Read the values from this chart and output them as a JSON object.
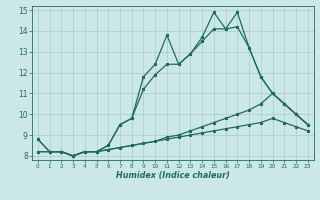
{
  "xlabel": "Humidex (Indice chaleur)",
  "xlim": [
    -0.5,
    23.5
  ],
  "ylim": [
    7.8,
    15.2
  ],
  "yticks": [
    8,
    9,
    10,
    11,
    12,
    13,
    14,
    15
  ],
  "xticks": [
    0,
    1,
    2,
    3,
    4,
    5,
    6,
    7,
    8,
    9,
    10,
    11,
    12,
    13,
    14,
    15,
    16,
    17,
    18,
    19,
    20,
    21,
    22,
    23
  ],
  "bg_color": "#cce8e6",
  "line_color": "#1e6b63",
  "grid_color": "#b0d0cc",
  "line1_x": [
    0,
    1,
    2,
    3,
    4,
    5,
    6,
    7,
    8,
    9,
    10,
    11,
    12,
    13,
    14,
    15,
    16,
    17,
    18,
    19,
    20,
    21,
    22,
    23
  ],
  "line1_y": [
    8.8,
    8.2,
    8.2,
    8.0,
    8.2,
    8.2,
    8.5,
    9.5,
    9.8,
    11.8,
    12.4,
    13.8,
    12.4,
    12.9,
    13.7,
    14.9,
    14.1,
    14.9,
    13.2,
    11.8,
    11.0,
    10.5,
    10.0,
    9.5
  ],
  "line2_x": [
    0,
    1,
    2,
    3,
    4,
    5,
    6,
    7,
    8,
    9,
    10,
    11,
    12,
    13,
    14,
    15,
    16,
    17,
    18,
    19,
    20,
    21,
    22,
    23
  ],
  "line2_y": [
    8.8,
    8.2,
    8.2,
    8.0,
    8.2,
    8.2,
    8.5,
    9.5,
    9.8,
    11.2,
    11.9,
    12.4,
    12.4,
    12.9,
    13.5,
    14.1,
    14.1,
    14.2,
    13.2,
    11.8,
    11.0,
    10.5,
    10.0,
    9.5
  ],
  "line3_x": [
    0,
    1,
    2,
    3,
    4,
    5,
    6,
    7,
    8,
    9,
    10,
    11,
    12,
    13,
    14,
    15,
    16,
    17,
    18,
    19,
    20,
    21,
    22,
    23
  ],
  "line3_y": [
    8.2,
    8.2,
    8.2,
    8.0,
    8.2,
    8.2,
    8.3,
    8.4,
    8.5,
    8.6,
    8.7,
    8.9,
    9.0,
    9.2,
    9.4,
    9.6,
    9.8,
    10.0,
    10.2,
    10.5,
    11.0,
    10.5,
    10.0,
    9.5
  ],
  "line4_x": [
    0,
    1,
    2,
    3,
    4,
    5,
    6,
    7,
    8,
    9,
    10,
    11,
    12,
    13,
    14,
    15,
    16,
    17,
    18,
    19,
    20,
    21,
    22,
    23
  ],
  "line4_y": [
    8.2,
    8.2,
    8.2,
    8.0,
    8.2,
    8.2,
    8.3,
    8.4,
    8.5,
    8.6,
    8.7,
    8.8,
    8.9,
    9.0,
    9.1,
    9.2,
    9.3,
    9.4,
    9.5,
    9.6,
    9.8,
    9.6,
    9.4,
    9.2
  ],
  "ytick_labels": [
    "8",
    "9",
    "10",
    "11",
    "12",
    "13",
    "14",
    "15"
  ],
  "xtick_labels": [
    "0",
    "1",
    "2",
    "3",
    "4",
    "5",
    "6",
    "7",
    "8",
    "9",
    "10",
    "11",
    "12",
    "13",
    "14",
    "15",
    "16",
    "17",
    "18",
    "19",
    "20",
    "21",
    "22",
    "23"
  ]
}
